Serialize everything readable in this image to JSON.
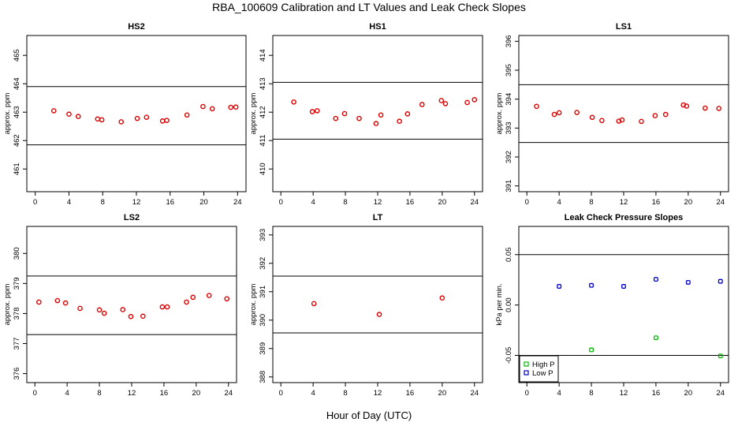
{
  "figure": {
    "title": "RBA_100609  Calibration and LT Values and Leak Check Slopes",
    "xlabel": "Hour of Day (UTC)"
  },
  "chart_data": [
    {
      "type": "scatter",
      "title": "HS2",
      "ylabel": "approx. ppm",
      "xlim": [
        -1,
        25
      ],
      "ylim": [
        460.2,
        465.7
      ],
      "xticks": [
        0,
        4,
        8,
        12,
        16,
        20,
        24
      ],
      "yticks": [
        461,
        462,
        463,
        464,
        465
      ],
      "hlines": [
        463.9,
        461.85
      ],
      "series": [
        {
          "color": "#dd0000",
          "marker": "circle",
          "x": [
            2.2,
            4.0,
            5.1,
            7.4,
            7.9,
            10.2,
            12.1,
            13.2,
            15.1,
            15.6,
            18.0,
            19.9,
            21.0,
            23.2,
            23.8
          ],
          "y": [
            463.05,
            462.93,
            462.85,
            462.76,
            462.73,
            462.66,
            462.78,
            462.82,
            462.69,
            462.71,
            462.9,
            463.2,
            463.12,
            463.17,
            463.18
          ]
        }
      ]
    },
    {
      "type": "scatter",
      "title": "HS1",
      "ylabel": "approx. ppm",
      "xlim": [
        -1,
        25
      ],
      "ylim": [
        409.2,
        414.7
      ],
      "xticks": [
        0,
        4,
        8,
        12,
        16,
        20,
        24
      ],
      "yticks": [
        410,
        411,
        412,
        413,
        414
      ],
      "hlines": [
        413.05,
        411.05
      ],
      "series": [
        {
          "color": "#dd0000",
          "marker": "circle",
          "x": [
            1.6,
            3.9,
            4.5,
            6.8,
            7.9,
            9.7,
            11.8,
            12.4,
            14.7,
            15.7,
            17.5,
            19.9,
            20.4,
            23.1,
            24.0
          ],
          "y": [
            412.36,
            412.02,
            412.05,
            411.78,
            411.95,
            411.78,
            411.6,
            411.9,
            411.68,
            411.94,
            412.27,
            412.41,
            412.3,
            412.34,
            412.44
          ]
        }
      ]
    },
    {
      "type": "scatter",
      "title": "LS1",
      "ylabel": "approx. ppm",
      "xlim": [
        -1,
        25
      ],
      "ylim": [
        390.8,
        396.2
      ],
      "xticks": [
        0,
        4,
        8,
        12,
        16,
        20,
        24
      ],
      "yticks": [
        391,
        392,
        393,
        394,
        395,
        396
      ],
      "hlines": [
        394.5,
        392.5
      ],
      "series": [
        {
          "color": "#dd0000",
          "marker": "circle",
          "x": [
            1.2,
            3.4,
            4.0,
            6.2,
            8.1,
            9.3,
            11.4,
            11.8,
            14.2,
            15.9,
            17.2,
            19.4,
            19.8,
            22.1,
            23.8
          ],
          "y": [
            393.75,
            393.47,
            393.53,
            393.54,
            393.37,
            393.26,
            393.24,
            393.28,
            393.23,
            393.43,
            393.47,
            393.8,
            393.76,
            393.69,
            393.68
          ]
        }
      ]
    },
    {
      "type": "scatter",
      "title": "LS2",
      "ylabel": "approx. ppm",
      "xlim": [
        -1,
        25
      ],
      "ylim": [
        375.7,
        380.9
      ],
      "xticks": [
        0,
        4,
        8,
        12,
        16,
        20,
        24
      ],
      "yticks": [
        376,
        377,
        378,
        379,
        380
      ],
      "hlines": [
        379.25,
        377.3
      ],
      "series": [
        {
          "color": "#dd0000",
          "marker": "circle",
          "x": [
            0.5,
            2.8,
            3.8,
            5.6,
            8.0,
            8.6,
            10.9,
            11.9,
            13.4,
            15.8,
            16.4,
            18.8,
            19.6,
            21.6,
            23.8
          ],
          "y": [
            378.38,
            378.43,
            378.35,
            378.17,
            378.12,
            378.01,
            378.13,
            377.9,
            377.91,
            378.22,
            378.22,
            378.38,
            378.54,
            378.6,
            378.49
          ]
        }
      ]
    },
    {
      "type": "scatter",
      "title": "LT",
      "ylabel": "approx. ppm",
      "xlim": [
        -1,
        25
      ],
      "ylim": [
        387.8,
        393.3
      ],
      "xticks": [
        0,
        4,
        8,
        12,
        16,
        20,
        24
      ],
      "yticks": [
        388,
        389,
        390,
        391,
        392,
        393
      ],
      "hlines": [
        391.55,
        389.55
      ],
      "series": [
        {
          "color": "#dd0000",
          "marker": "circle",
          "x": [
            4.1,
            12.2,
            20.0
          ],
          "y": [
            390.58,
            390.2,
            390.78
          ]
        }
      ]
    },
    {
      "type": "scatter",
      "title": "Leak Check Pressure Slopes",
      "ylabel": "kPa per min.",
      "xlim": [
        -1,
        25
      ],
      "ylim": [
        -0.077,
        0.078
      ],
      "xticks": [
        0,
        4,
        8,
        12,
        16,
        20,
        24
      ],
      "yticks": [
        -0.05,
        0.0,
        0.05
      ],
      "ytick_labels": [
        "-0.05",
        "0.00",
        "0.05"
      ],
      "hlines": [
        0.05,
        -0.05
      ],
      "legend": {
        "position": "bottom-left",
        "entries": [
          "High P",
          "Low P"
        ]
      },
      "series": [
        {
          "name": "High P",
          "color": "#00bb00",
          "marker": "square",
          "x": [
            8.0,
            16.0,
            24.0
          ],
          "y": [
            -0.0445,
            -0.0325,
            -0.0505
          ]
        },
        {
          "name": "Low P",
          "color": "#0000cc",
          "marker": "square",
          "x": [
            4.0,
            8.0,
            12.0,
            16.0,
            20.0,
            24.0
          ],
          "y": [
            0.0185,
            0.0195,
            0.0185,
            0.0255,
            0.0225,
            0.0235
          ]
        }
      ]
    }
  ]
}
